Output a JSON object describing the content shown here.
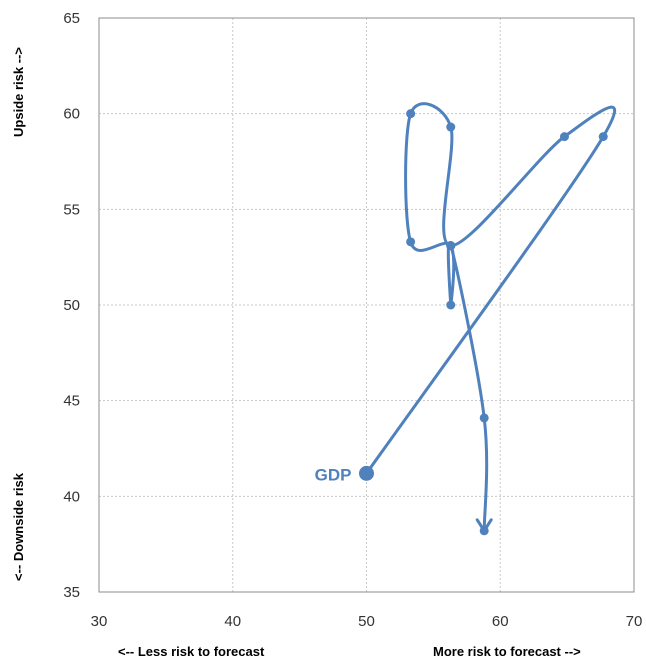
{
  "chart_data": {
    "type": "line",
    "xlim": [
      30,
      70
    ],
    "ylim": [
      35,
      65
    ],
    "x_ticks": [
      30,
      40,
      50,
      60,
      70
    ],
    "y_ticks": [
      35,
      40,
      45,
      50,
      55,
      60,
      65
    ],
    "grid": true,
    "x_label_left": "<-- Less risk to forecast",
    "x_label_right": "More risk to forecast -->",
    "y_label_top": "Upside risk -->",
    "y_label_bottom": "<-- Downside risk",
    "series": [
      {
        "name": "GDP",
        "color": "#4f81bd",
        "points": [
          {
            "x": 50.0,
            "y": 41.2
          },
          {
            "x": 67.7,
            "y": 58.8
          },
          {
            "x": 64.8,
            "y": 58.8
          },
          {
            "x": 56.3,
            "y": 53.1
          },
          {
            "x": 56.3,
            "y": 59.3
          },
          {
            "x": 53.3,
            "y": 60.0
          },
          {
            "x": 53.3,
            "y": 53.3
          },
          {
            "x": 56.3,
            "y": 53.1
          },
          {
            "x": 56.3,
            "y": 50.0
          },
          {
            "x": 56.3,
            "y": 53.1
          },
          {
            "x": 58.8,
            "y": 44.1
          },
          {
            "x": 58.8,
            "y": 38.2
          }
        ]
      }
    ]
  }
}
